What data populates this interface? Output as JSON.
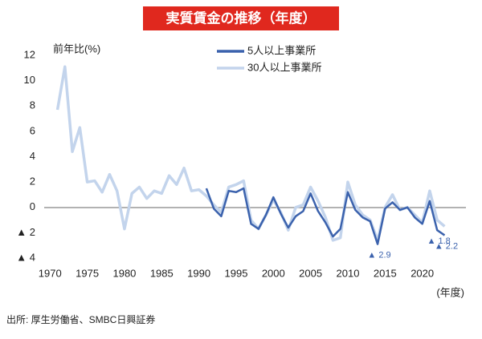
{
  "chart_data": {
    "type": "line",
    "title": "実質賃金の推移（年度）",
    "y_label": "前年比(%)",
    "x_unit": "(年度)",
    "source": "出所: 厚生労働省、SMBC日興証券",
    "x": [
      1971,
      1972,
      1973,
      1974,
      1975,
      1976,
      1977,
      1978,
      1979,
      1980,
      1981,
      1982,
      1983,
      1984,
      1985,
      1986,
      1987,
      1988,
      1989,
      1990,
      1991,
      1992,
      1993,
      1994,
      1995,
      1996,
      1997,
      1998,
      1999,
      2000,
      2001,
      2002,
      2003,
      2004,
      2005,
      2006,
      2007,
      2008,
      2009,
      2010,
      2011,
      2012,
      2013,
      2014,
      2015,
      2016,
      2017,
      2018,
      2019,
      2020,
      2021,
      2022,
      2023
    ],
    "series": [
      {
        "name": "5人以上事業所",
        "color": "#3b62ad",
        "values": [
          null,
          null,
          null,
          null,
          null,
          null,
          null,
          null,
          null,
          null,
          null,
          null,
          null,
          null,
          null,
          null,
          null,
          null,
          null,
          null,
          1.5,
          -0.1,
          -0.7,
          1.3,
          1.2,
          1.5,
          -1.3,
          -1.7,
          -0.6,
          0.8,
          -0.5,
          -1.6,
          -0.7,
          -0.3,
          1.1,
          -0.3,
          -1.2,
          -2.3,
          -1.7,
          1.2,
          -0.2,
          -0.8,
          -1.1,
          -2.9,
          -0.1,
          0.4,
          -0.2,
          0.0,
          -0.8,
          -1.3,
          0.5,
          -1.8,
          -2.2
        ],
        "value_labels": [
          null,
          null,
          null,
          null,
          null,
          null,
          null,
          null,
          null,
          null,
          null,
          null,
          null,
          null,
          null,
          null,
          null,
          null,
          null,
          null,
          null,
          null,
          null,
          null,
          null,
          null,
          null,
          null,
          null,
          null,
          null,
          null,
          null,
          null,
          null,
          null,
          null,
          null,
          null,
          null,
          null,
          null,
          null,
          "▲ 2.9",
          null,
          null,
          null,
          null,
          null,
          null,
          null,
          "▲ 1.8",
          "▲ 2.2"
        ]
      },
      {
        "name": "30人以上事業所",
        "color": "#c3d4ec",
        "values": [
          7.7,
          11.1,
          4.4,
          6.3,
          2.0,
          2.1,
          1.2,
          2.6,
          1.3,
          -1.7,
          1.1,
          1.6,
          0.7,
          1.3,
          1.1,
          2.5,
          1.8,
          3.1,
          1.3,
          1.4,
          0.9,
          0.2,
          -0.4,
          1.6,
          1.8,
          2.1,
          -1.0,
          -1.7,
          -0.6,
          0.6,
          -0.4,
          -1.8,
          0.0,
          0.2,
          1.6,
          0.5,
          -0.8,
          -2.6,
          -2.4,
          2.0,
          0.2,
          -0.6,
          -1.0,
          -2.6,
          0.0,
          1.0,
          -0.2,
          0.0,
          -0.6,
          -1.2,
          1.3,
          -1.0,
          -1.5
        ]
      }
    ],
    "xlim": [
      1969,
      2025
    ],
    "xticks": [
      1970,
      1975,
      1980,
      1985,
      1990,
      1995,
      2000,
      2005,
      2010,
      2015,
      2020
    ],
    "ylim": [
      -4,
      12
    ],
    "yticks": [
      {
        "value": -4,
        "label": "▲ 4"
      },
      {
        "value": -2,
        "label": "▲ 2"
      },
      0,
      2,
      4,
      6,
      8,
      10,
      12
    ],
    "grid": false,
    "legend": "top"
  }
}
